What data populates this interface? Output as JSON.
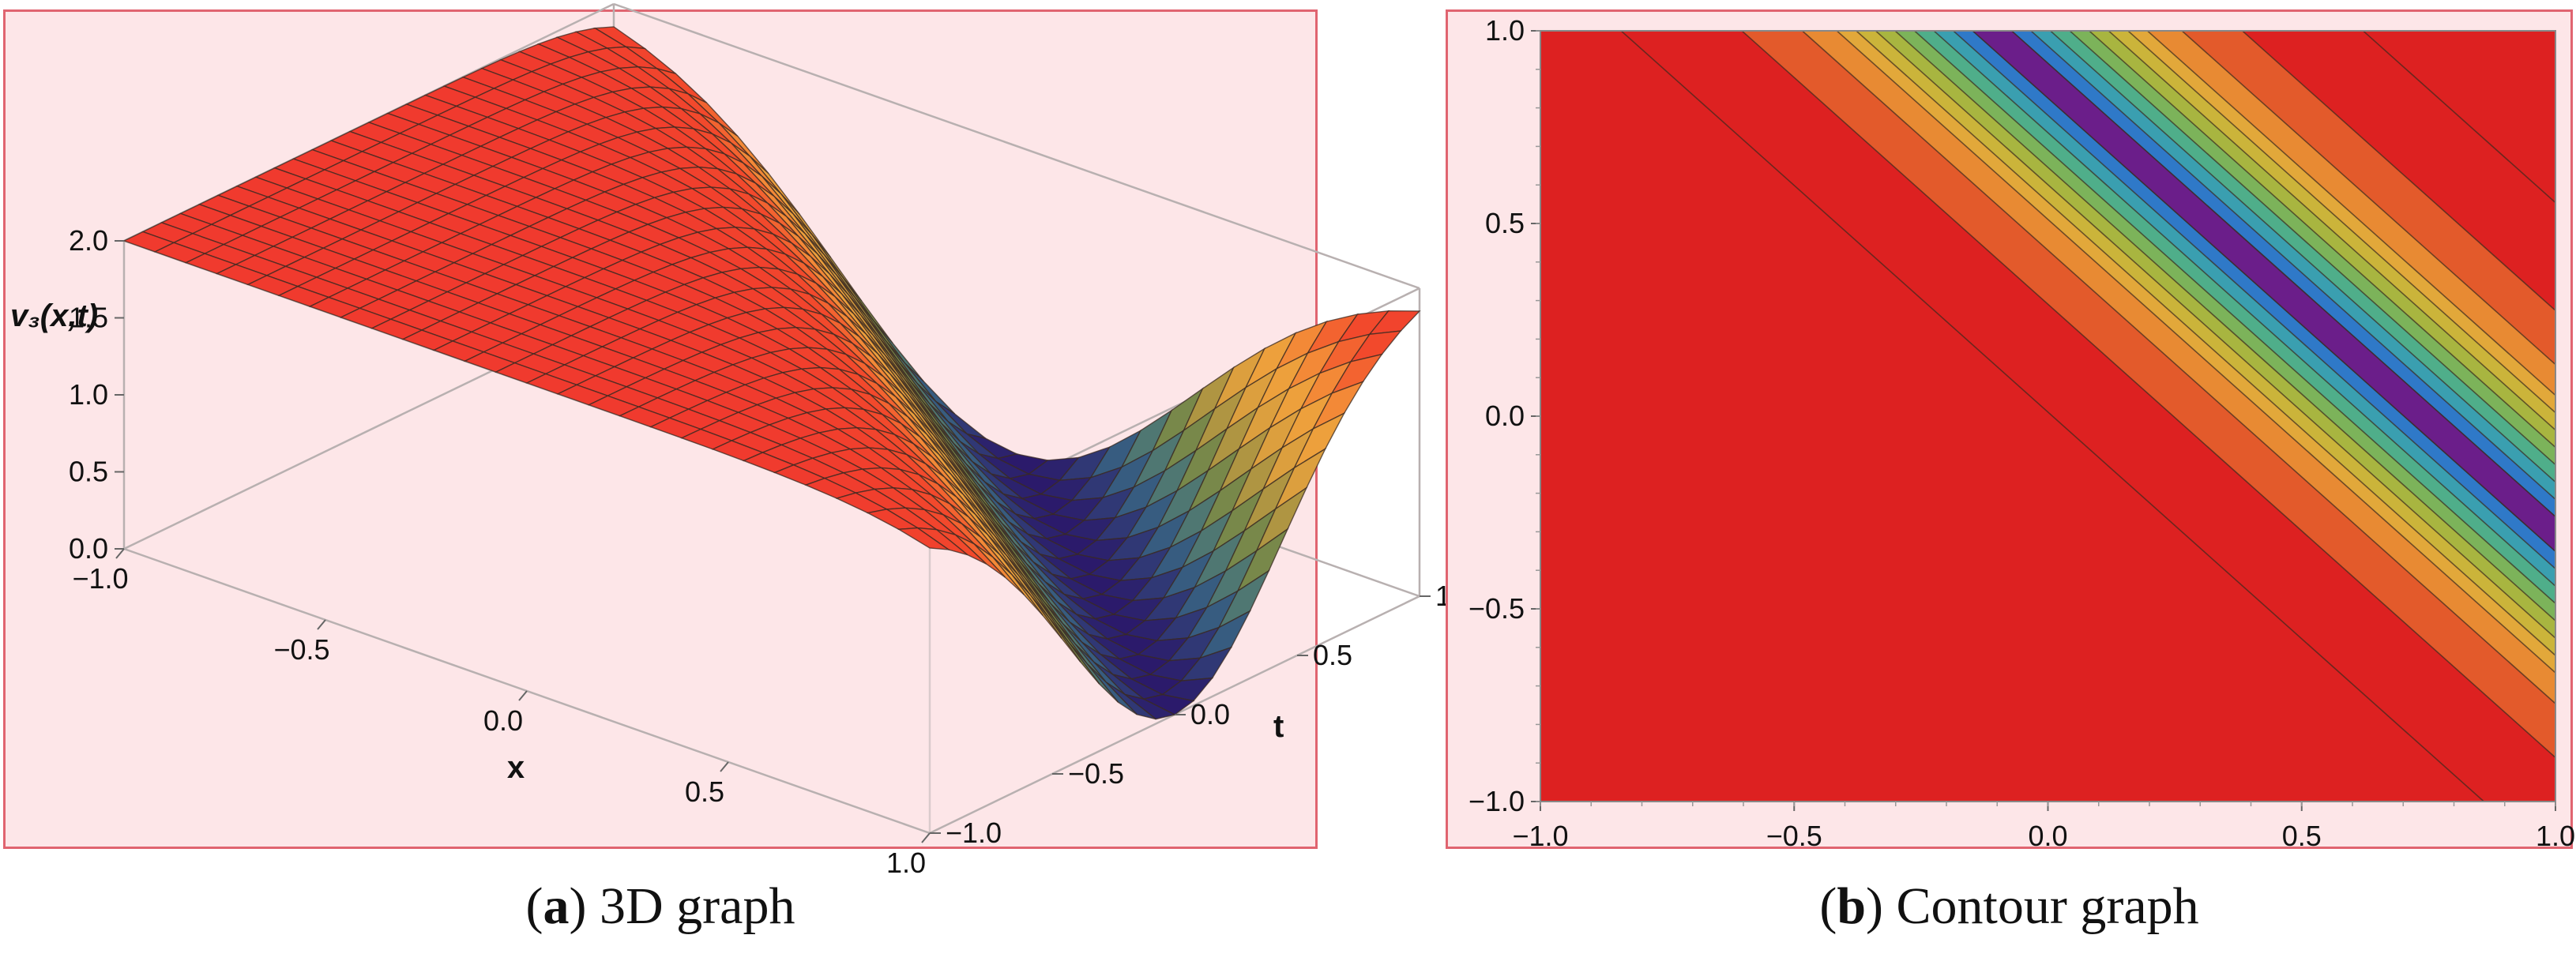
{
  "captions": {
    "a": {
      "letter": "a",
      "text": "3D graph"
    },
    "b": {
      "letter": "b",
      "text": "Contour graph"
    }
  },
  "chart_data": [
    {
      "type": "surface",
      "axes": {
        "x": {
          "label": "x",
          "range": [
            -1,
            1
          ],
          "ticks": [
            "−1.0",
            "−0.5",
            "0.0",
            "0.5",
            "1.0"
          ]
        },
        "t": {
          "label": "t",
          "range": [
            -1,
            1
          ],
          "ticks": [
            "−1.0",
            "−0.5",
            "0.0",
            "0.5",
            "1.0"
          ]
        },
        "z": {
          "label": "v₃(x,t)",
          "range": [
            0,
            2
          ],
          "ticks": [
            "0.0",
            "0.5",
            "1.0",
            "1.5",
            "2.0"
          ]
        }
      },
      "surface_peak": 2.0,
      "surface_trough": 0.0,
      "trough_line": "x + t = 1",
      "colormap": [
        "#2b1a6b",
        "#3a6f86",
        "#7e8a45",
        "#d79e3f",
        "#f4a13b",
        "#f24a2c",
        "#f03a2e"
      ]
    },
    {
      "type": "contour",
      "axes": {
        "x": {
          "range": [
            -1,
            1
          ],
          "ticks": [
            "−1.0",
            "−0.5",
            "0.0",
            "0.5",
            "1.0"
          ]
        },
        "y": {
          "range": [
            -1,
            1
          ],
          "ticks": [
            "−1.0",
            "−0.5",
            "0.0",
            "0.5",
            "1.0"
          ]
        }
      },
      "trough_line": "x + 0.85·y = 0.74",
      "band_colors": [
        "#6b1e8a",
        "#3a3fc0",
        "#2f79c8",
        "#3a9fb0",
        "#4fae8a",
        "#7cb35a",
        "#a8b540",
        "#cbb43a",
        "#e2a83a",
        "#e88a33",
        "#e35a2b",
        "#dd2121"
      ]
    }
  ]
}
